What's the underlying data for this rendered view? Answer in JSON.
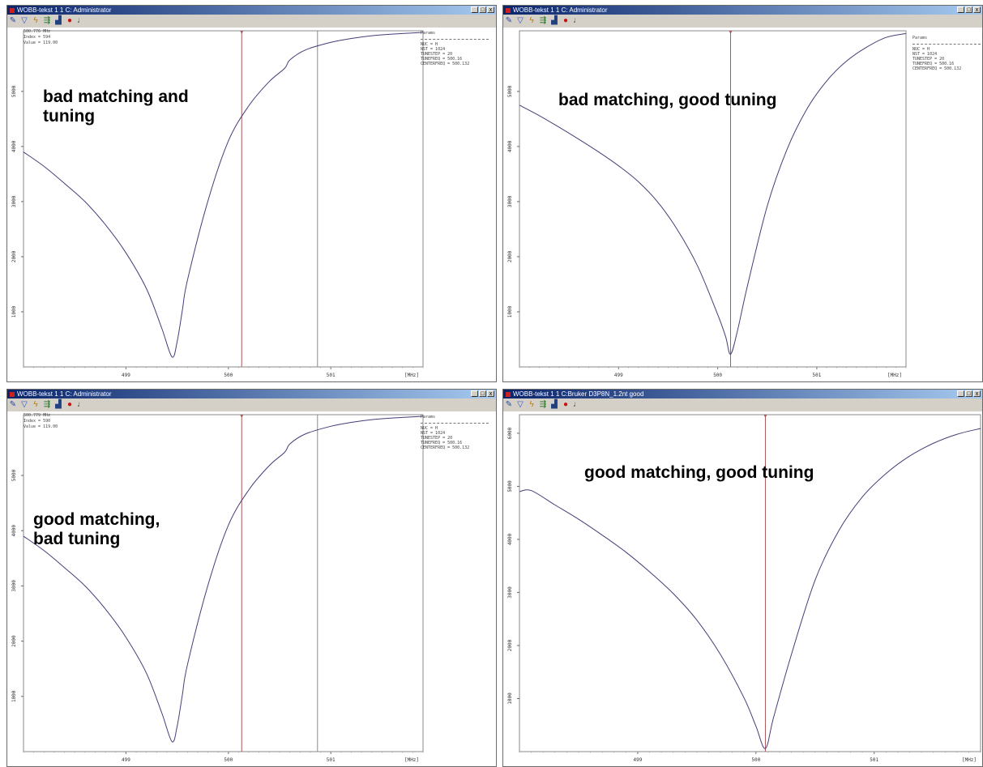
{
  "panels": [
    {
      "title": "WOBB-tekst 1 1 C: Administrator",
      "window_buttons": [
        "_",
        "□",
        "x"
      ],
      "annotation": "bad matching and\ntuning",
      "readout": [
        "500.776 MHz",
        "Index = 594",
        "Value = 119.00"
      ],
      "params_header": "Params",
      "params": [
        "NUC = H",
        "NST = 1024",
        "TUNESTEP = 20",
        "TUNEFREQ = 500.16",
        "CENTERFREQ = 500.132"
      ],
      "chart_data": {
        "type": "line",
        "x_tick_labels": [
          "499",
          "500",
          "501",
          "[MHz]"
        ],
        "y_tick_labels": [
          "1000",
          "2000",
          "3000",
          "4000",
          "5000"
        ],
        "xlim": [
          498.0,
          501.9
        ],
        "ylim": [
          0,
          6100
        ],
        "x": [
          498.0,
          498.2,
          498.4,
          498.6,
          498.8,
          499.0,
          499.2,
          499.35,
          499.45,
          499.5,
          499.55,
          499.6,
          499.8,
          500.0,
          500.2,
          500.4,
          500.55,
          500.6,
          500.75,
          501.0,
          501.2,
          501.4,
          501.6,
          501.9
        ],
        "y": [
          3900,
          3640,
          3330,
          3000,
          2580,
          2070,
          1420,
          700,
          180,
          460,
          1020,
          1570,
          3010,
          4100,
          4740,
          5180,
          5420,
          5570,
          5750,
          5890,
          5960,
          6010,
          6040,
          6070
        ],
        "markers_x": [
          500.13,
          500.87
        ]
      }
    },
    {
      "title": "WOBB-tekst 1 1 C: Administrator",
      "window_buttons": [
        "_",
        "□",
        "x"
      ],
      "annotation": "bad matching, good tuning",
      "readout": [],
      "params_header": "Params",
      "params": [
        "NUC = H",
        "NST = 1024",
        "TUNESTEP = 20",
        "TUNEFREQ = 500.16",
        "CENTERFREQ = 500.132"
      ],
      "chart_data": {
        "type": "line",
        "x_tick_labels": [
          "499",
          "500",
          "501",
          "[MHz]"
        ],
        "y_tick_labels": [
          "1000",
          "2000",
          "3000",
          "4000",
          "5000"
        ],
        "xlim": [
          498.0,
          501.9
        ],
        "ylim": [
          0,
          6100
        ],
        "x": [
          498.0,
          498.2,
          498.4,
          498.6,
          498.8,
          499.0,
          499.2,
          499.4,
          499.6,
          499.8,
          500.0,
          500.08,
          500.13,
          500.2,
          500.3,
          500.5,
          500.7,
          500.9,
          501.1,
          501.3,
          501.5,
          501.7,
          501.9
        ],
        "y": [
          4750,
          4560,
          4350,
          4130,
          3900,
          3650,
          3360,
          2980,
          2470,
          1820,
          950,
          550,
          230,
          660,
          1470,
          2920,
          3950,
          4680,
          5190,
          5550,
          5800,
          5980,
          6050
        ],
        "markers_x": [
          500.13
        ]
      }
    },
    {
      "title": "WOBB-tekst 1 1 C: Administrator",
      "window_buttons": [
        "_",
        "□",
        "x"
      ],
      "annotation": "good matching,\nbad tuning",
      "readout": [
        "500.779 MHz",
        "Index = 590",
        "Value = 119.00"
      ],
      "params_header": "Params",
      "params": [
        "NUC = H",
        "NST = 1024",
        "TUNESTEP = 20",
        "TUNEFREQ = 500.16",
        "CENTERFREQ = 500.132"
      ],
      "chart_data": {
        "type": "line",
        "x_tick_labels": [
          "499",
          "500",
          "501",
          "[MHz]"
        ],
        "y_tick_labels": [
          "1000",
          "2000",
          "3000",
          "4000",
          "5000"
        ],
        "xlim": [
          498.0,
          501.9
        ],
        "ylim": [
          0,
          6100
        ],
        "x": [
          498.0,
          498.2,
          498.4,
          498.6,
          498.8,
          499.0,
          499.2,
          499.35,
          499.45,
          499.5,
          499.55,
          499.6,
          499.8,
          500.0,
          500.2,
          500.4,
          500.55,
          500.6,
          500.75,
          501.0,
          501.2,
          501.4,
          501.6,
          501.9
        ],
        "y": [
          3900,
          3640,
          3330,
          3000,
          2580,
          2070,
          1420,
          700,
          180,
          460,
          1020,
          1570,
          3010,
          4100,
          4740,
          5180,
          5420,
          5570,
          5750,
          5890,
          5960,
          6010,
          6040,
          6070
        ],
        "markers_x": [
          500.13,
          500.87
        ]
      }
    },
    {
      "title": "WOBB-tekst 1 1 C:Bruker D3P8N_1.2nt good",
      "window_buttons": [
        "_",
        "□",
        "x"
      ],
      "annotation": "good matching, good tuning",
      "readout": [],
      "params_header": "",
      "params": [],
      "chart_data": {
        "type": "line",
        "x_tick_labels": [
          "499",
          "500",
          "501",
          "[MHz]"
        ],
        "y_tick_labels": [
          "1000",
          "2000",
          "3000",
          "4000",
          "5000",
          "6000"
        ],
        "xlim": [
          498.0,
          501.9
        ],
        "ylim": [
          0,
          6350
        ],
        "x": [
          498.0,
          498.1,
          498.3,
          498.5,
          498.7,
          498.9,
          499.1,
          499.3,
          499.5,
          499.7,
          499.9,
          500.0,
          500.08,
          500.15,
          500.3,
          500.5,
          500.7,
          500.9,
          501.1,
          501.3,
          501.5,
          501.7,
          501.9
        ],
        "y": [
          4900,
          4920,
          4650,
          4380,
          4080,
          3760,
          3390,
          2980,
          2480,
          1830,
          1010,
          480,
          60,
          650,
          1830,
          3230,
          4160,
          4800,
          5240,
          5570,
          5810,
          5980,
          6090
        ],
        "markers_x": [
          500.08
        ]
      }
    }
  ],
  "toolbar_icons": [
    "pencil-icon",
    "filter-icon",
    "lightning-icon",
    "scale-icon",
    "chart-icon",
    "stop-icon",
    "help-icon"
  ],
  "colors": {
    "curve": "#4a3b78",
    "marker_red": "#a85a5a",
    "marker_gray": "#8a8a8a",
    "title_start": "#0a246a",
    "title_end": "#a6caf0"
  }
}
